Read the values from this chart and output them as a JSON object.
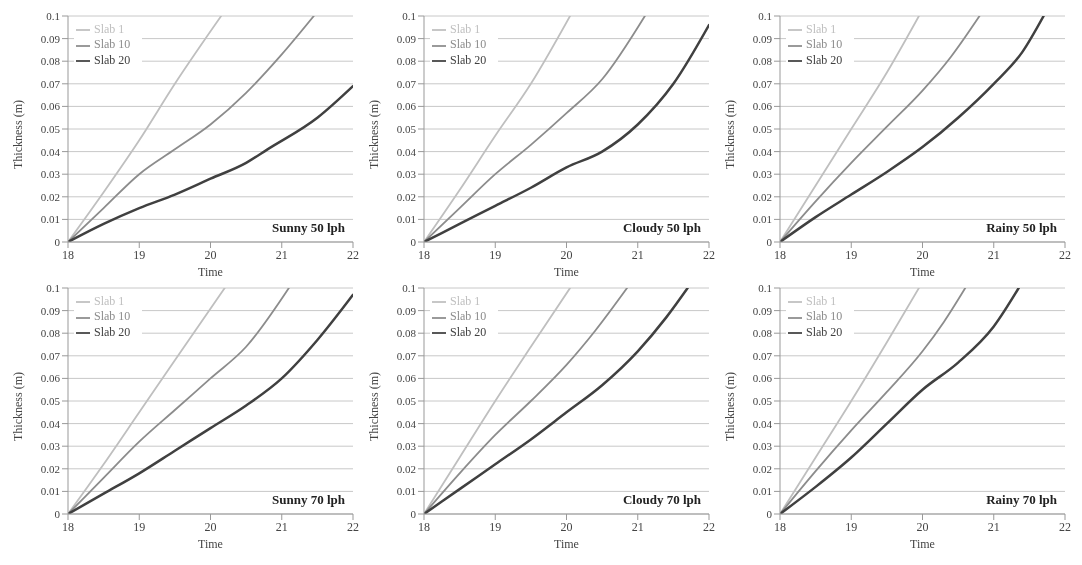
{
  "chart_data": [
    {
      "type": "line",
      "xlabel": "Time",
      "ylabel": "Thickness (m)",
      "annotations": [
        "Sunny 50 lph"
      ],
      "xlim": [
        18,
        22
      ],
      "xticks": [
        18,
        19,
        20,
        21,
        22
      ],
      "ylim": [
        0,
        0.1
      ],
      "yticks": [
        0,
        0.01,
        0.02,
        0.03,
        0.04,
        0.05,
        0.06,
        0.07,
        0.08,
        0.09,
        0.1
      ],
      "grid": "y",
      "legend": "top left",
      "marker": "none",
      "line_style": "solid",
      "series": [
        {
          "name": "Slab 1",
          "color": "#bfbfbf",
          "x": [
            18,
            18.5,
            19,
            19.5,
            20.15
          ],
          "values": [
            0,
            0.022,
            0.045,
            0.07,
            0.1
          ]
        },
        {
          "name": "Slab 10",
          "color": "#8c8c8c",
          "x": [
            18,
            18.5,
            19,
            19.5,
            20,
            20.5,
            21,
            21.45
          ],
          "values": [
            0,
            0.015,
            0.03,
            0.041,
            0.052,
            0.066,
            0.083,
            0.1
          ]
        },
        {
          "name": "Slab 20",
          "color": "#404040",
          "x": [
            18,
            18.5,
            19,
            19.5,
            20,
            20.5,
            20.8,
            21.5,
            22
          ],
          "values": [
            0,
            0.008,
            0.015,
            0.021,
            0.028,
            0.035,
            0.041,
            0.055,
            0.069
          ]
        }
      ]
    },
    {
      "type": "line",
      "xlabel": "Time",
      "ylabel": "Thickness (m)",
      "annotations": [
        "Cloudy 50 lph"
      ],
      "xlim": [
        18,
        22
      ],
      "xticks": [
        18,
        19,
        20,
        21,
        22
      ],
      "ylim": [
        0,
        0.1
      ],
      "yticks": [
        0,
        0.01,
        0.02,
        0.03,
        0.04,
        0.05,
        0.06,
        0.07,
        0.08,
        0.09,
        0.1
      ],
      "grid": "y",
      "legend": "top left",
      "marker": "none",
      "line_style": "solid",
      "series": [
        {
          "name": "Slab 1",
          "color": "#bfbfbf",
          "x": [
            18,
            18.5,
            19,
            19.5,
            20.05
          ],
          "values": [
            0,
            0.023,
            0.047,
            0.07,
            0.1
          ]
        },
        {
          "name": "Slab 10",
          "color": "#8c8c8c",
          "x": [
            18,
            18.5,
            19,
            19.5,
            20,
            20.5,
            21.1
          ],
          "values": [
            0,
            0.015,
            0.03,
            0.043,
            0.057,
            0.072,
            0.1
          ]
        },
        {
          "name": "Slab 20",
          "color": "#404040",
          "x": [
            18,
            18.5,
            19,
            19.5,
            20,
            20.5,
            21,
            21.5,
            22
          ],
          "values": [
            0,
            0.008,
            0.016,
            0.024,
            0.033,
            0.04,
            0.052,
            0.07,
            0.096
          ]
        }
      ]
    },
    {
      "type": "line",
      "xlabel": "Time",
      "ylabel": "Thickness (m)",
      "annotations": [
        "Rainy 50 lph"
      ],
      "xlim": [
        18,
        22
      ],
      "xticks": [
        18,
        19,
        20,
        21,
        22
      ],
      "ylim": [
        0,
        0.1
      ],
      "yticks": [
        0,
        0.01,
        0.02,
        0.03,
        0.04,
        0.05,
        0.06,
        0.07,
        0.08,
        0.09,
        0.1
      ],
      "grid": "y",
      "legend": "top left",
      "marker": "none",
      "line_style": "solid",
      "series": [
        {
          "name": "Slab 1",
          "color": "#bfbfbf",
          "x": [
            18,
            18.5,
            19,
            19.5,
            19.95
          ],
          "values": [
            0,
            0.025,
            0.05,
            0.075,
            0.1
          ]
        },
        {
          "name": "Slab 10",
          "color": "#8c8c8c",
          "x": [
            18,
            18.5,
            19,
            19.5,
            20,
            20.4,
            20.8
          ],
          "values": [
            0,
            0.018,
            0.035,
            0.051,
            0.067,
            0.082,
            0.1
          ]
        },
        {
          "name": "Slab 20",
          "color": "#404040",
          "x": [
            18,
            18.5,
            19,
            19.5,
            20,
            20.5,
            21,
            21.4,
            21.7
          ],
          "values": [
            0,
            0.011,
            0.021,
            0.031,
            0.042,
            0.055,
            0.07,
            0.084,
            0.1
          ]
        }
      ]
    },
    {
      "type": "line",
      "xlabel": "Time",
      "ylabel": "Thickness (m)",
      "annotations": [
        "Sunny 70 lph"
      ],
      "xlim": [
        18,
        22
      ],
      "xticks": [
        18,
        19,
        20,
        21,
        22
      ],
      "ylim": [
        0,
        0.1
      ],
      "yticks": [
        0,
        0.01,
        0.02,
        0.03,
        0.04,
        0.05,
        0.06,
        0.07,
        0.08,
        0.09,
        0.1
      ],
      "grid": "y",
      "legend": "top left",
      "marker": "none",
      "line_style": "solid",
      "series": [
        {
          "name": "Slab 1",
          "color": "#bfbfbf",
          "x": [
            18,
            18.5,
            19,
            19.5,
            20.2
          ],
          "values": [
            0,
            0.022,
            0.045,
            0.068,
            0.1
          ]
        },
        {
          "name": "Slab 10",
          "color": "#8c8c8c",
          "x": [
            18,
            18.5,
            19,
            19.5,
            20,
            20.5,
            21.1
          ],
          "values": [
            0,
            0.016,
            0.032,
            0.046,
            0.06,
            0.074,
            0.1
          ]
        },
        {
          "name": "Slab 20",
          "color": "#404040",
          "x": [
            18,
            18.5,
            19,
            19.5,
            20,
            20.5,
            21,
            21.5,
            22
          ],
          "values": [
            0,
            0.009,
            0.018,
            0.028,
            0.038,
            0.048,
            0.06,
            0.077,
            0.097
          ]
        }
      ]
    },
    {
      "type": "line",
      "xlabel": "Time",
      "ylabel": "Thickness (m)",
      "annotations": [
        "Cloudy 70 lph"
      ],
      "xlim": [
        18,
        22
      ],
      "xticks": [
        18,
        19,
        20,
        21,
        22
      ],
      "ylim": [
        0,
        0.1
      ],
      "yticks": [
        0,
        0.01,
        0.02,
        0.03,
        0.04,
        0.05,
        0.06,
        0.07,
        0.08,
        0.09,
        0.1
      ],
      "grid": "y",
      "legend": "top left",
      "marker": "none",
      "line_style": "solid",
      "series": [
        {
          "name": "Slab 1",
          "color": "#bfbfbf",
          "x": [
            18,
            18.5,
            19,
            19.5,
            20.05
          ],
          "values": [
            0,
            0.025,
            0.05,
            0.074,
            0.1
          ]
        },
        {
          "name": "Slab 10",
          "color": "#8c8c8c",
          "x": [
            18,
            18.5,
            19,
            19.5,
            20,
            20.4,
            20.85
          ],
          "values": [
            0,
            0.018,
            0.035,
            0.05,
            0.066,
            0.081,
            0.1
          ]
        },
        {
          "name": "Slab 20",
          "color": "#404040",
          "x": [
            18,
            18.5,
            19,
            19.5,
            20,
            20.5,
            21,
            21.4,
            21.7
          ],
          "values": [
            0,
            0.011,
            0.022,
            0.033,
            0.045,
            0.057,
            0.072,
            0.087,
            0.1
          ]
        }
      ]
    },
    {
      "type": "line",
      "xlabel": "Time",
      "ylabel": "Thickness (m)",
      "annotations": [
        "Rainy 70 lph"
      ],
      "xlim": [
        18,
        22
      ],
      "xticks": [
        18,
        19,
        20,
        21,
        22
      ],
      "ylim": [
        0,
        0.1
      ],
      "yticks": [
        0,
        0.01,
        0.02,
        0.03,
        0.04,
        0.05,
        0.06,
        0.07,
        0.08,
        0.09,
        0.1
      ],
      "grid": "y",
      "legend": "top left",
      "marker": "none",
      "line_style": "solid",
      "series": [
        {
          "name": "Slab 1",
          "color": "#bfbfbf",
          "x": [
            18,
            18.5,
            19,
            19.5,
            19.95
          ],
          "values": [
            0,
            0.025,
            0.05,
            0.076,
            0.1
          ]
        },
        {
          "name": "Slab 10",
          "color": "#8c8c8c",
          "x": [
            18,
            18.5,
            19,
            19.5,
            20,
            20.3,
            20.6
          ],
          "values": [
            0,
            0.019,
            0.037,
            0.054,
            0.072,
            0.085,
            0.1
          ]
        },
        {
          "name": "Slab 20",
          "color": "#404040",
          "x": [
            18,
            18.5,
            19,
            19.5,
            20,
            20.5,
            21,
            21.35
          ],
          "values": [
            0,
            0.012,
            0.025,
            0.04,
            0.055,
            0.067,
            0.083,
            0.1
          ]
        }
      ]
    }
  ]
}
